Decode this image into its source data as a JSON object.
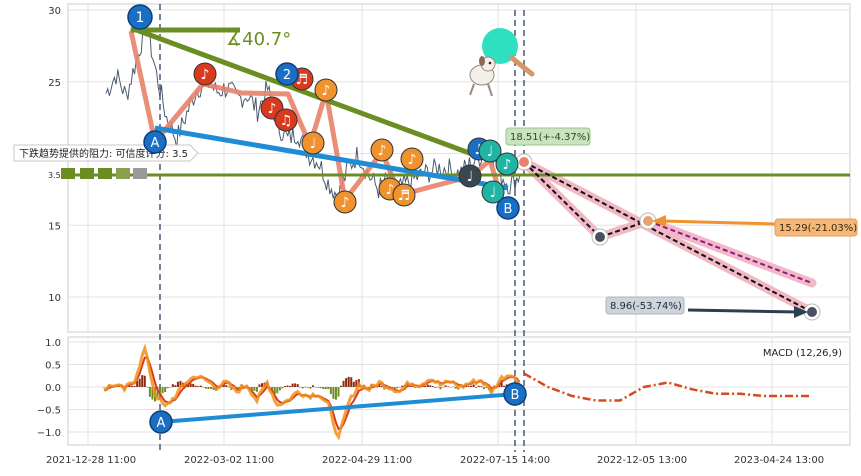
{
  "chart_data": [
    {
      "type": "line",
      "panel": "price",
      "ylim": [
        8,
        30
      ],
      "y_ticks": [
        10,
        15,
        20,
        25,
        30
      ],
      "y_tick_labels": [
        "10",
        "15",
        "",
        "25",
        "30"
      ],
      "grid": true,
      "series": [
        {
          "values": [
            24.2,
            25.5,
            24.0,
            26.5,
            29.0,
            25.5,
            22.5,
            21.0,
            22.8,
            24.5,
            25.0,
            24.3,
            24.6,
            23.8,
            24.1,
            23.0,
            24.5,
            22.0,
            21.0,
            21.5,
            20.0,
            19.5,
            18.0,
            17.0,
            19.0,
            20.0,
            18.5,
            17.5,
            18.2,
            17.5,
            18.0,
            18.4,
            18.7,
            19.0,
            18.9,
            18.6,
            19.2,
            19.8,
            20.5,
            18.6,
            17.8,
            18.5
          ]
        }
      ],
      "x_tick_labels": [
        "2021-12-28 11:00",
        "2022-03-02 11:00",
        "2022-04-29 11:00",
        "2022-07-15 14:00",
        "2022-12-05 13:00",
        "2023-04-24 13:00"
      ],
      "resistance_line": 18.35,
      "resistance_label": "下跌趋势提供的阻力: 可信度评分: 3.5",
      "resistance_score": "3.5",
      "angle_label": "∡40.7°",
      "waypoint_labels": [
        "1",
        "2",
        "A",
        "B"
      ],
      "annotations": [
        {
          "label": "18.51(+-4.37%)",
          "value": 18.51
        },
        {
          "label": "15.29(-21.03%)",
          "value": 15.29
        },
        {
          "label": "8.96(-53.74%)",
          "value": 8.96
        }
      ],
      "projection_points": [
        {
          "x": "2022-12-05",
          "y": 14.3
        },
        {
          "x": "2023-01-18",
          "y": 15.29
        },
        {
          "x": "2023-06-20",
          "y": 8.96
        }
      ]
    },
    {
      "type": "line",
      "panel": "macd",
      "title": "MACD (12,26,9)",
      "ylim": [
        -1.3,
        1.1
      ],
      "y_ticks": [
        -1.0,
        -0.5,
        0.0,
        0.5,
        1.0
      ],
      "y_tick_labels": [
        "−1.0",
        "−0.5",
        "0.0",
        "0.5",
        "1.0"
      ],
      "series": [
        {
          "values": [
            -0.05,
            0.05,
            -0.05,
            0.15,
            0.85,
            -0.15,
            -0.45,
            -0.2,
            0.1,
            0.25,
            0.15,
            0.0,
            0.1,
            -0.1,
            0.05,
            -0.3,
            0.1,
            -0.4,
            -0.3,
            -0.1,
            -0.2,
            -0.15,
            -0.4,
            -1.15,
            -0.35,
            0.05,
            -0.05,
            0.1,
            0.0,
            -0.1,
            0.1,
            0.05,
            0.2,
            0.05,
            0.12,
            0.0,
            0.1,
            0.15,
            -0.1,
            0.2,
            0.3,
            -0.05
          ]
        }
      ],
      "projection_values": [
        0.3,
        0.0,
        -0.2,
        -0.3,
        -0.3,
        0.0,
        0.1,
        -0.05,
        -0.15,
        -0.15,
        -0.2,
        -0.2,
        -0.2
      ],
      "waypoint_labels": [
        "A",
        "B"
      ]
    }
  ],
  "icons": {
    "music_notes": [
      "♪",
      "♬",
      "♫",
      "♩"
    ],
    "decoration": "dog-with-paddle-icon"
  },
  "colors": {
    "trend_green": "#6b8e23",
    "trend_blue": "#1f8dd6",
    "price_line": "#4a5a6e",
    "swing_red": "#e8826a",
    "note_red": "#d93a1e",
    "note_orange": "#f0922e",
    "note_teal": "#1fb5a3",
    "note_dark": "#3a4650",
    "badge_blue": "#1a6fc4",
    "pink_band": "#f2b8c6",
    "macd_orange": "#f28e1c",
    "macd_red": "#d93a1e"
  }
}
